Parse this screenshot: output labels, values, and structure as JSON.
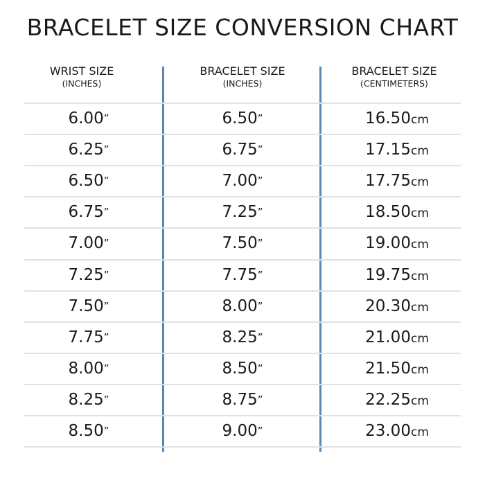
{
  "title": "BRACELET SIZE CONVERSION CHART",
  "columns": [
    {
      "label": "WRIST SIZE",
      "sub": "(INCHES)",
      "unit": "”"
    },
    {
      "label": "BRACELET SIZE",
      "sub": "(INCHES)",
      "unit": "”"
    },
    {
      "label": "BRACELET SIZE",
      "sub": "(CENTIMETERS)",
      "unit": "cm"
    }
  ],
  "rows": [
    [
      "6.00",
      "6.50",
      "16.50"
    ],
    [
      "6.25",
      "6.75",
      "17.15"
    ],
    [
      "6.50",
      "7.00",
      "17.75"
    ],
    [
      "6.75",
      "7.25",
      "18.50"
    ],
    [
      "7.00",
      "7.50",
      "19.00"
    ],
    [
      "7.25",
      "7.75",
      "19.75"
    ],
    [
      "7.50",
      "8.00",
      "20.30"
    ],
    [
      "7.75",
      "8.25",
      "21.00"
    ],
    [
      "8.00",
      "8.50",
      "21.50"
    ],
    [
      "8.25",
      "8.75",
      "22.25"
    ],
    [
      "8.50",
      "9.00",
      "23.00"
    ]
  ],
  "colors": {
    "divider": "#5b86b0",
    "row_line": "#dde3e8"
  }
}
